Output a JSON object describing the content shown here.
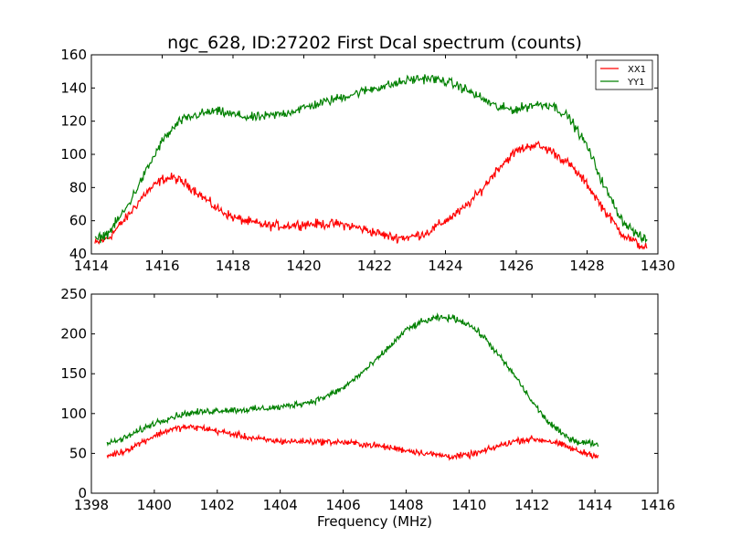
{
  "figure": {
    "title": "ngc_628, ID:27202 First Dcal spectrum (counts)",
    "xlabel": "Frequency (MHz)"
  },
  "chart_data": [
    {
      "type": "line",
      "title": "ngc_628, ID:27202 First Dcal spectrum (counts)",
      "xlabel": "",
      "ylabel": "",
      "xlim": [
        1414,
        1430
      ],
      "ylim": [
        40,
        160
      ],
      "xticks": [
        1414,
        1416,
        1418,
        1420,
        1422,
        1424,
        1426,
        1428,
        1430
      ],
      "yticks": [
        40,
        60,
        80,
        100,
        120,
        140,
        160
      ],
      "grid": false,
      "legend": "top-right",
      "x_range": [
        1414.1,
        1429.7
      ],
      "noise": 2.5,
      "series": [
        {
          "name": "XX1",
          "color": "#ff0000",
          "x": [
            1414.1,
            1414.5,
            1415.0,
            1415.5,
            1416.0,
            1416.3,
            1416.7,
            1417.0,
            1417.5,
            1418.0,
            1418.5,
            1419.0,
            1419.5,
            1420.0,
            1420.5,
            1421.0,
            1421.5,
            1422.0,
            1422.5,
            1423.0,
            1423.5,
            1424.0,
            1424.5,
            1425.0,
            1425.5,
            1426.0,
            1426.5,
            1427.0,
            1427.5,
            1428.0,
            1428.5,
            1429.0,
            1429.5,
            1429.7
          ],
          "values": [
            46,
            50,
            62,
            76,
            85,
            86,
            82,
            77,
            68,
            62,
            59,
            57,
            57,
            58,
            58,
            58,
            56,
            53,
            50,
            50,
            53,
            60,
            67,
            78,
            92,
            102,
            106,
            102,
            94,
            82,
            66,
            52,
            45,
            44
          ]
        },
        {
          "name": "YY1",
          "color": "#008000",
          "x": [
            1414.1,
            1414.5,
            1415.0,
            1415.5,
            1416.0,
            1416.5,
            1417.0,
            1417.5,
            1418.0,
            1418.5,
            1419.0,
            1419.5,
            1420.0,
            1420.5,
            1421.0,
            1421.5,
            1422.0,
            1422.5,
            1423.0,
            1423.5,
            1424.0,
            1424.5,
            1425.0,
            1425.5,
            1426.0,
            1426.5,
            1427.0,
            1427.5,
            1428.0,
            1428.5,
            1429.0,
            1429.5,
            1429.7
          ],
          "values": [
            48,
            53,
            68,
            88,
            108,
            120,
            124,
            126,
            124,
            122,
            123,
            125,
            128,
            131,
            134,
            137,
            140,
            142,
            145,
            146,
            144,
            140,
            134,
            128,
            127,
            130,
            130,
            122,
            105,
            80,
            60,
            50,
            48
          ]
        }
      ]
    },
    {
      "type": "line",
      "title": "",
      "xlabel": "Frequency (MHz)",
      "ylabel": "",
      "xlim": [
        1398,
        1416
      ],
      "ylim": [
        0,
        250
      ],
      "xticks": [
        1398,
        1400,
        1402,
        1404,
        1406,
        1408,
        1410,
        1412,
        1414,
        1416
      ],
      "yticks": [
        0,
        50,
        100,
        150,
        200,
        250
      ],
      "grid": false,
      "x_range": [
        1398.5,
        1414.1
      ],
      "noise": 3.5,
      "series": [
        {
          "name": "XX1",
          "color": "#ff0000",
          "x": [
            1398.5,
            1399.0,
            1399.5,
            1400.0,
            1400.5,
            1401.0,
            1401.5,
            1402.0,
            1402.5,
            1403.0,
            1403.5,
            1404.0,
            1405.0,
            1406.0,
            1407.0,
            1408.0,
            1409.0,
            1409.5,
            1410.0,
            1410.5,
            1411.0,
            1411.5,
            1412.0,
            1412.5,
            1413.0,
            1413.5,
            1414.1
          ],
          "values": [
            47,
            52,
            62,
            72,
            80,
            83,
            82,
            78,
            74,
            70,
            67,
            65,
            65,
            64,
            60,
            54,
            48,
            46,
            48,
            53,
            60,
            66,
            68,
            66,
            60,
            52,
            47
          ]
        },
        {
          "name": "YY1",
          "color": "#008000",
          "x": [
            1398.5,
            1399.0,
            1399.5,
            1400.0,
            1400.5,
            1401.0,
            1401.5,
            1402.0,
            1403.0,
            1404.0,
            1405.0,
            1405.5,
            1406.0,
            1406.5,
            1407.0,
            1407.5,
            1408.0,
            1408.5,
            1409.0,
            1409.5,
            1410.0,
            1410.5,
            1411.0,
            1411.5,
            1412.0,
            1412.5,
            1413.0,
            1413.5,
            1414.1
          ],
          "values": [
            62,
            68,
            78,
            88,
            95,
            100,
            102,
            104,
            105,
            108,
            115,
            122,
            132,
            148,
            165,
            185,
            205,
            215,
            220,
            220,
            212,
            195,
            170,
            145,
            115,
            90,
            73,
            64,
            62
          ]
        }
      ]
    }
  ]
}
